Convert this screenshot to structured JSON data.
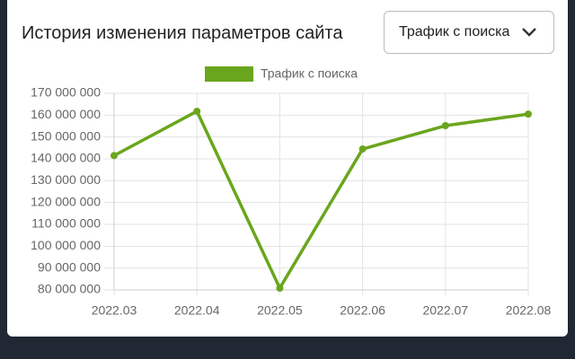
{
  "chart_data": {
    "type": "line",
    "title": "История изменения параметров сайта",
    "categories": [
      "2022.03",
      "2022.04",
      "2022.05",
      "2022.06",
      "2022.07",
      "2022.08"
    ],
    "series": [
      {
        "name": "Трафик с поиска",
        "color": "#6aa61d",
        "values": [
          141500000,
          161800000,
          80800000,
          144500000,
          155200000,
          160500000
        ]
      }
    ],
    "ylim": [
      80000000,
      170000000
    ],
    "yticks": [
      {
        "value": 80000000,
        "label": "80 000 000"
      },
      {
        "value": 90000000,
        "label": "90 000 000"
      },
      {
        "value": 100000000,
        "label": "100 000 000"
      },
      {
        "value": 110000000,
        "label": "110 000 000"
      },
      {
        "value": 120000000,
        "label": "120 000 000"
      },
      {
        "value": 130000000,
        "label": "130 000 000"
      },
      {
        "value": 140000000,
        "label": "140 000 000"
      },
      {
        "value": 150000000,
        "label": "150 000 000"
      },
      {
        "value": 160000000,
        "label": "160 000 000"
      },
      {
        "value": 170000000,
        "label": "170 000 000"
      }
    ],
    "grid": true,
    "legend": "top"
  },
  "dropdown": {
    "label": "Трафик с поиска"
  }
}
